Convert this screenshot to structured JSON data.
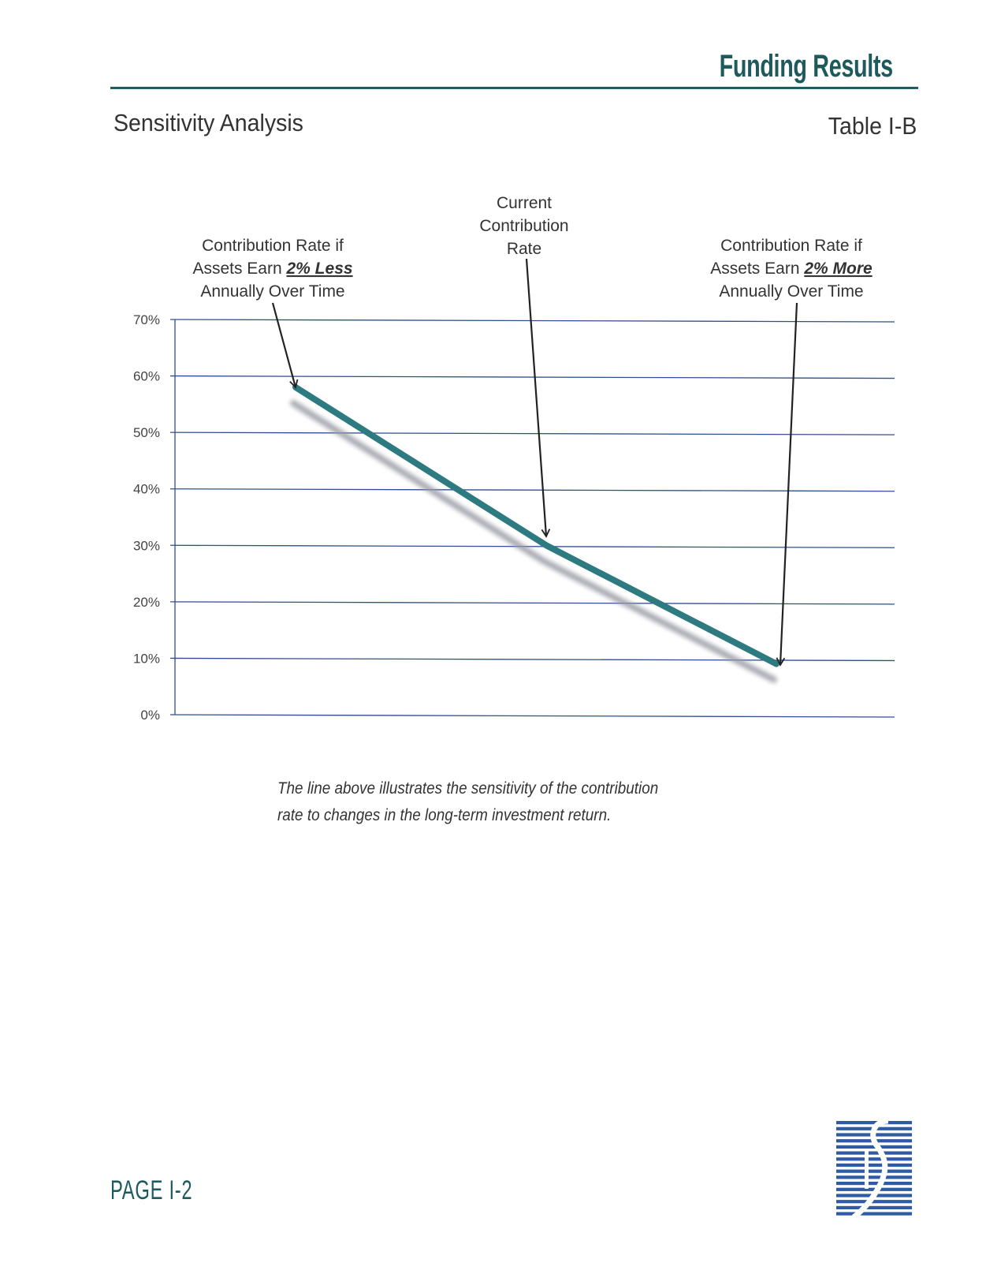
{
  "header": {
    "title": "Funding Results",
    "section_title": "Sensitivity Analysis",
    "table_label": "Table I-B"
  },
  "colors": {
    "accent": "#1e5a5c",
    "series_line": "#2d7a80",
    "gridline": "#2f4f8f",
    "logo_blue": "#2e5aa6"
  },
  "chart_data": {
    "type": "line",
    "title": "",
    "xlabel": "",
    "ylabel": "",
    "ylim": [
      0,
      70
    ],
    "yticks": [
      "0%",
      "10%",
      "20%",
      "30%",
      "40%",
      "50%",
      "60%",
      "70%"
    ],
    "grid": true,
    "series": [
      {
        "points": [
          {
            "label": "2% Less",
            "y": 58
          },
          {
            "label": "Current",
            "y": 30
          },
          {
            "label": "2% More",
            "y": 9
          }
        ]
      }
    ],
    "annotations": [
      {
        "name": "less",
        "lines": [
          [
            {
              "t": "Contribution Rate if",
              "style": "plain"
            }
          ],
          [
            {
              "t": "Assets Earn ",
              "style": "plain"
            },
            {
              "t": "2% Less",
              "style": "emph"
            }
          ],
          [
            {
              "t": "Annually Over Time",
              "style": "plain"
            }
          ]
        ]
      },
      {
        "name": "current",
        "lines": [
          [
            {
              "t": "Current",
              "style": "plain"
            }
          ],
          [
            {
              "t": "Contribution",
              "style": "plain"
            }
          ],
          [
            {
              "t": "Rate",
              "style": "plain"
            }
          ]
        ]
      },
      {
        "name": "more",
        "lines": [
          [
            {
              "t": "Contribution Rate if",
              "style": "plain"
            }
          ],
          [
            {
              "t": "Assets Earn ",
              "style": "plain"
            },
            {
              "t": "2% More",
              "style": "emph"
            }
          ],
          [
            {
              "t": "Annually Over Time",
              "style": "plain"
            }
          ]
        ]
      }
    ]
  },
  "caption": "The line above illustrates the sensitivity of the contribution rate to changes in the long-term investment return.",
  "footer": {
    "page_number": "PAGE I-2",
    "logo_icon": "striped-s-logo-icon"
  }
}
